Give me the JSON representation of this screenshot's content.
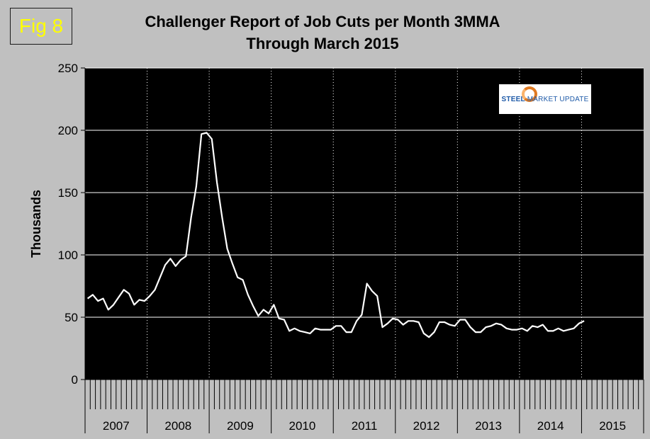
{
  "badge": "Fig 8",
  "logo": {
    "part1": "STEEL",
    "part2": "MARKET UPDATE"
  },
  "chart_data": {
    "type": "line",
    "title": "Challenger Report of Job Cuts per Month 3MMA",
    "subtitle": "Through March 2015",
    "ylabel": "Thousands",
    "xlabel": "",
    "ylim": [
      0,
      250
    ],
    "yticks": [
      0,
      50,
      100,
      150,
      200,
      250
    ],
    "grid": true,
    "legend": "none",
    "line_color": "#ffffff",
    "plot_background": "#000000",
    "year_labels": [
      "2007",
      "2008",
      "2009",
      "2010",
      "2011",
      "2012",
      "2013",
      "2014",
      "2015"
    ],
    "months_per_year": 12,
    "series": [
      {
        "values": [
          65,
          68,
          63,
          65,
          56,
          60,
          66,
          72,
          69,
          60,
          64,
          63,
          67,
          72,
          82,
          92,
          97,
          91,
          96,
          99,
          130,
          155,
          197,
          198,
          193,
          158,
          130,
          105,
          93,
          82,
          80,
          68,
          59,
          51,
          56,
          53,
          60,
          49,
          48,
          39,
          41,
          39,
          38,
          37,
          41,
          40,
          40,
          40,
          43,
          43,
          38,
          38,
          47,
          52,
          77,
          71,
          67,
          42,
          45,
          49,
          48,
          44,
          47,
          47,
          46,
          37,
          34,
          38,
          46,
          46,
          44,
          43,
          48,
          48,
          42,
          38,
          38,
          42,
          43,
          45,
          44,
          41,
          40,
          40,
          41,
          39,
          43,
          42,
          44,
          39,
          39,
          41,
          39,
          40,
          41,
          45,
          47
        ]
      }
    ]
  }
}
